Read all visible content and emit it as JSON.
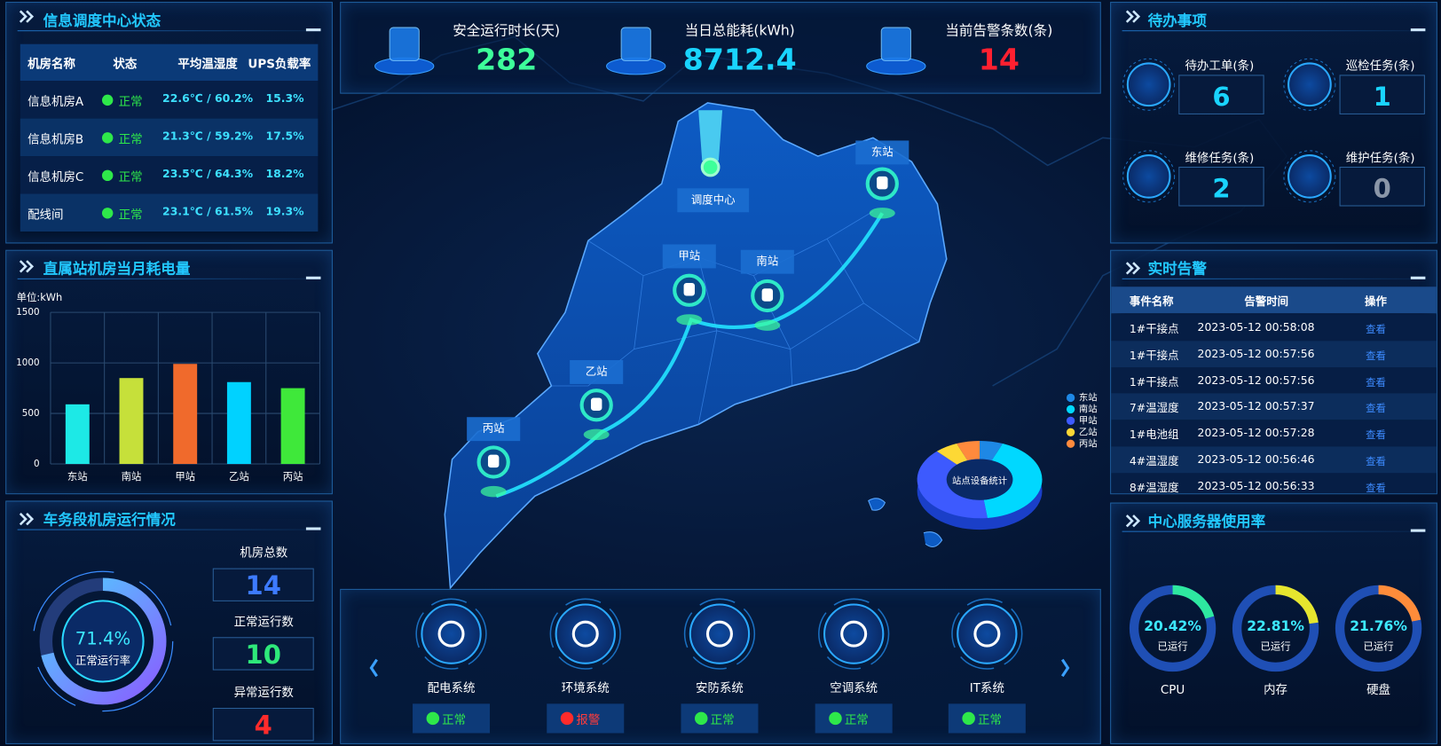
{
  "header": {
    "metrics": [
      {
        "label": "安全运行时长(天)",
        "value": 282,
        "color": "#3dff9a"
      },
      {
        "label": "当日总能耗(kWh)",
        "value": 8712.4,
        "color": "#19d4ff"
      },
      {
        "label": "当前告警条数(条)",
        "value": 14,
        "color": "#ff2030"
      }
    ]
  },
  "room_status": {
    "title": "信息调度中心状态",
    "columns": [
      "机房名称",
      "状态",
      "平均温湿度",
      "UPS负载率"
    ],
    "rows": [
      [
        "信息机房A",
        "正常",
        "22.6℃ / 60.2%",
        "15.3%"
      ],
      [
        "信息机房B",
        "正常",
        "21.3℃ / 59.2%",
        "17.5%"
      ],
      [
        "信息机房C",
        "正常",
        "23.5℃ / 64.3%",
        "18.2%"
      ],
      [
        "配线间",
        "正常",
        "23.1℃ / 61.5%",
        "19.3%"
      ]
    ]
  },
  "depot": {
    "stats": [
      {
        "label": "机房总数",
        "value": 14,
        "color": "#3d7bff"
      },
      {
        "label": "正常运行数",
        "value": 10,
        "color": "#2ee87a"
      },
      {
        "label": "异常运行数",
        "value": 4,
        "color": "#ff2b2b"
      }
    ]
  },
  "todo": {
    "title": "待办事项",
    "items": [
      {
        "label": "待办工单(条)",
        "value": 6
      },
      {
        "label": "巡检任务(条)",
        "value": 1
      },
      {
        "label": "维修任务(条)",
        "value": 2
      },
      {
        "label": "维护任务(条)",
        "value": 0
      }
    ]
  },
  "alarms": {
    "title": "实时告警",
    "columns": [
      "事件名称",
      "告警时间",
      "操作"
    ],
    "rows": [
      [
        "1#干接点",
        "2023-05-12 00:58:08",
        "查看"
      ],
      [
        "1#干接点",
        "2023-05-12 00:57:56",
        "查看"
      ],
      [
        "1#干接点",
        "2023-05-12 00:57:56",
        "查看"
      ],
      [
        "7#温湿度",
        "2023-05-12 00:57:37",
        "查看"
      ],
      [
        "1#电池组",
        "2023-05-12 00:57:28",
        "查看"
      ],
      [
        "4#温湿度",
        "2023-05-12 00:56:46",
        "查看"
      ],
      [
        "8#温湿度",
        "2023-05-12 00:56:33",
        "查看"
      ]
    ]
  },
  "map": {
    "center": "调度中心",
    "stations": [
      "东站",
      "南站",
      "甲站",
      "乙站",
      "丙站"
    ]
  },
  "systems": {
    "items": [
      {
        "name": "配电系统",
        "status": "正常"
      },
      {
        "name": "环境系统",
        "status": "报警"
      },
      {
        "name": "安防系统",
        "status": "正常"
      },
      {
        "name": "空调系统",
        "status": "正常"
      },
      {
        "name": "IT系统",
        "status": "正常"
      }
    ]
  },
  "chart_data": [
    {
      "type": "bar",
      "title": "直属站机房当月耗电量",
      "y_label": "单位:kWh",
      "categories": [
        "东站",
        "南站",
        "甲站",
        "乙站",
        "丙站"
      ],
      "values": [
        590,
        850,
        990,
        810,
        750
      ],
      "colors": [
        "#1de9e6",
        "#c6e03a",
        "#f06a2c",
        "#00d2ff",
        "#3fe83a"
      ],
      "ylim": [
        0,
        1500
      ],
      "yticks": [
        0,
        500,
        1000,
        1500
      ],
      "grid": true
    },
    {
      "type": "pie",
      "title": "站点设备统计",
      "donut": true,
      "categories": [
        "东站",
        "南站",
        "甲站",
        "乙站",
        "丙站"
      ],
      "values": [
        6,
        42,
        40,
        6,
        6
      ],
      "colors": [
        "#1e88e5",
        "#00d8ff",
        "#3d5afe",
        "#fdd835",
        "#ff8a3d"
      ]
    },
    {
      "type": "gauge",
      "title": "车务段机房运行情况",
      "label": "正常运行率",
      "values": [
        71.4
      ],
      "value_labels": [
        "71.4%"
      ],
      "colors": [
        "#6f7dff"
      ],
      "ylim": [
        0,
        100
      ]
    },
    {
      "type": "gauge",
      "title": "中心服务器使用率",
      "label": "已运行",
      "categories": [
        "CPU",
        "内存",
        "硬盘"
      ],
      "values": [
        20.42,
        22.81,
        21.76
      ],
      "value_labels": [
        "20.42%",
        "22.81%",
        "21.76%"
      ],
      "colors": [
        "#2ee8a0",
        "#e6e62e",
        "#ff8c3a"
      ],
      "ylim": [
        0,
        100
      ]
    }
  ]
}
